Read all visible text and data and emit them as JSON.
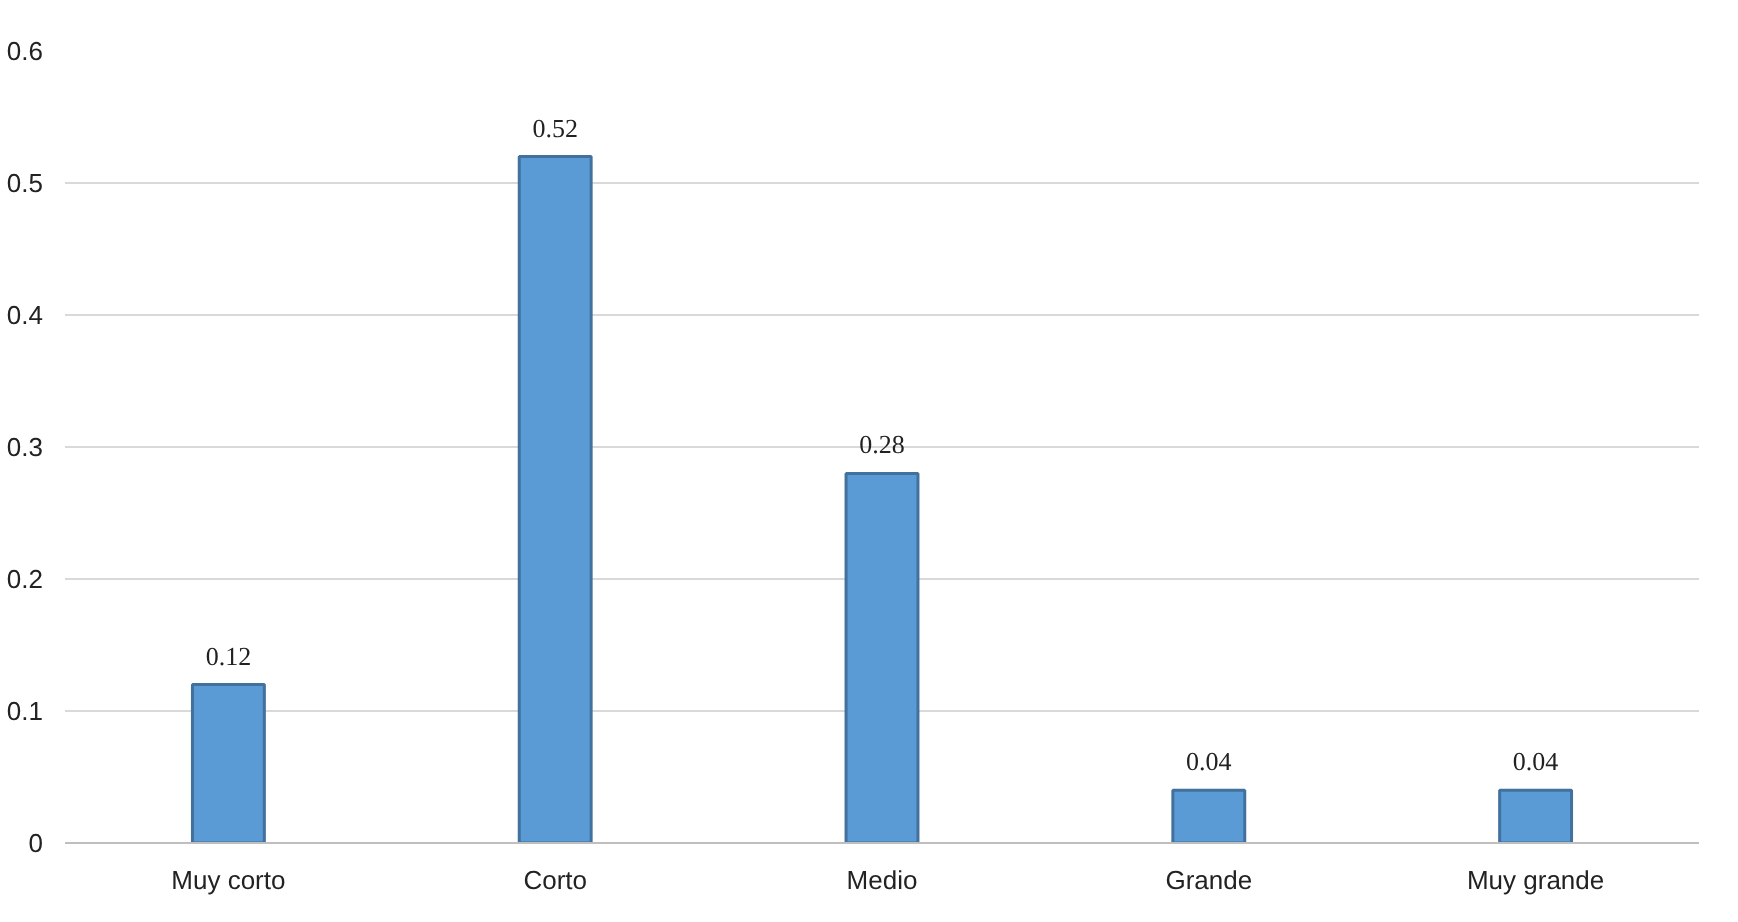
{
  "chart_data": {
    "type": "bar",
    "categories": [
      "Muy corto",
      "Corto",
      "Medio",
      "Grande",
      "Muy grande"
    ],
    "values": [
      0.12,
      0.52,
      0.28,
      0.04,
      0.04
    ],
    "color": "#5b9bd5",
    "ylim": [
      0,
      0.6
    ],
    "yticks": [
      0,
      0.1,
      0.2,
      0.3,
      0.4,
      0.5,
      0.6
    ],
    "grid": "y",
    "data_labels": true
  }
}
